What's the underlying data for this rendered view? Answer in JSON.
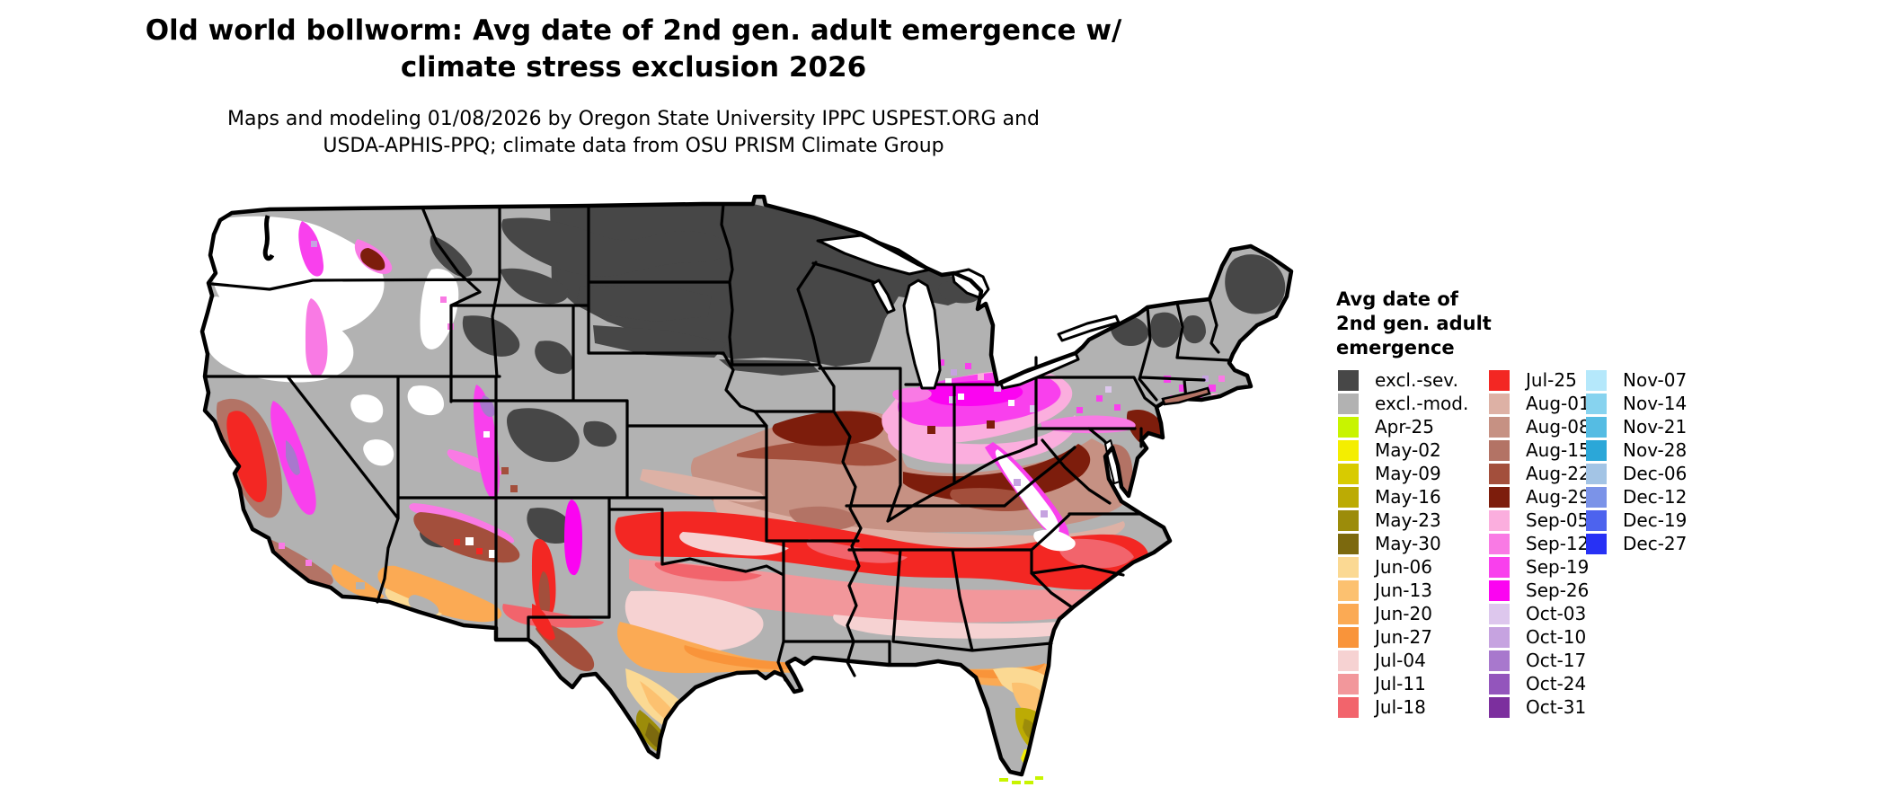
{
  "title": {
    "line1": "Old world bollworm: Avg date of 2nd gen. adult emergence w/",
    "line2": "climate stress exclusion 2026"
  },
  "subtitle": {
    "line1": "Maps and modeling 01/08/2026 by Oregon State University IPPC USPEST.ORG and",
    "line2": "USDA-APHIS-PPQ; climate data from OSU PRISM Climate Group"
  },
  "legend": {
    "title_lines": [
      "Avg date of",
      "2nd gen. adult",
      "emergence"
    ],
    "columns": [
      {
        "items": [
          {
            "label": "excl.-sev.",
            "color": "#474747"
          },
          {
            "label": "excl.-mod.",
            "color": "#b2b2b2"
          },
          {
            "label": "Apr-25",
            "color": "#c8f400"
          },
          {
            "label": "May-02",
            "color": "#f4ee00"
          },
          {
            "label": "May-09",
            "color": "#d8cb00"
          },
          {
            "label": "May-16",
            "color": "#bcab04"
          },
          {
            "label": "May-23",
            "color": "#9c8c0a"
          },
          {
            "label": "May-30",
            "color": "#7c690e"
          },
          {
            "label": "Jun-06",
            "color": "#fbd993"
          },
          {
            "label": "Jun-13",
            "color": "#fcc170"
          },
          {
            "label": "Jun-20",
            "color": "#fbaa54"
          },
          {
            "label": "Jun-27",
            "color": "#f9943a"
          },
          {
            "label": "Jul-04",
            "color": "#f6d2d2"
          },
          {
            "label": "Jul-11",
            "color": "#f2979b"
          },
          {
            "label": "Jul-18",
            "color": "#f2646c"
          }
        ]
      },
      {
        "items": [
          {
            "label": "Jul-25",
            "color": "#f32723"
          },
          {
            "label": "Aug-01",
            "color": "#ddb1a5"
          },
          {
            "label": "Aug-08",
            "color": "#c69183"
          },
          {
            "label": "Aug-15",
            "color": "#b37365"
          },
          {
            "label": "Aug-22",
            "color": "#a34f3c"
          },
          {
            "label": "Aug-29",
            "color": "#7d1d0c"
          },
          {
            "label": "Sep-05",
            "color": "#fbaede"
          },
          {
            "label": "Sep-12",
            "color": "#f97ae4"
          },
          {
            "label": "Sep-19",
            "color": "#f940ed"
          },
          {
            "label": "Sep-26",
            "color": "#fb04f1"
          },
          {
            "label": "Oct-03",
            "color": "#ddc7ed"
          },
          {
            "label": "Oct-10",
            "color": "#c6a3e0"
          },
          {
            "label": "Oct-17",
            "color": "#a878cd"
          },
          {
            "label": "Oct-24",
            "color": "#9355bc"
          },
          {
            "label": "Oct-31",
            "color": "#7c2f9e"
          }
        ]
      },
      {
        "items": [
          {
            "label": "Nov-07",
            "color": "#b5e8fb"
          },
          {
            "label": "Nov-14",
            "color": "#87d3ef"
          },
          {
            "label": "Nov-21",
            "color": "#55bce3"
          },
          {
            "label": "Nov-28",
            "color": "#2ba7d8"
          },
          {
            "label": "Dec-06",
            "color": "#a3c4e5"
          },
          {
            "label": "Dec-12",
            "color": "#7b93e8"
          },
          {
            "label": "Dec-19",
            "color": "#4d63ee"
          },
          {
            "label": "Dec-27",
            "color": "#2731f5"
          }
        ]
      }
    ]
  },
  "map": {
    "background": "#ffffff",
    "border_color": "#000000",
    "palette": {
      "excl_sev": "#474747",
      "excl_mod": "#b2b2b2",
      "no_data_white": "#ffffff",
      "apr25": "#c8f400",
      "may02": "#f4ee00",
      "may09": "#d8cb00",
      "may16": "#bcab04",
      "may23": "#9c8c0a",
      "may30": "#7c690e",
      "jun06": "#fbd993",
      "jun13": "#fcc170",
      "jun20": "#fbaa54",
      "jun27": "#f9943a",
      "jul04": "#f6d2d2",
      "jul11": "#f2979b",
      "jul18": "#f2646c",
      "jul25": "#f32723",
      "aug01": "#ddb1a5",
      "aug08": "#c69183",
      "aug15": "#b37365",
      "aug22": "#a34f3c",
      "aug29": "#7d1d0c",
      "sep05": "#fbaede",
      "sep12": "#f97ae4",
      "sep19": "#f940ed",
      "sep26": "#fb04f1",
      "oct03": "#ddc7ed",
      "oct10": "#c6a3e0",
      "oct17": "#a878cd",
      "oct24": "#9355bc",
      "oct31": "#7c2f9e",
      "nov07": "#b5e8fb",
      "nov14": "#87d3ef",
      "nov21": "#55bce3",
      "nov28": "#2ba7d8",
      "dec06": "#a3c4e5",
      "dec12": "#7b93e8",
      "dec19": "#4d63ee",
      "dec27": "#2731f5"
    }
  }
}
